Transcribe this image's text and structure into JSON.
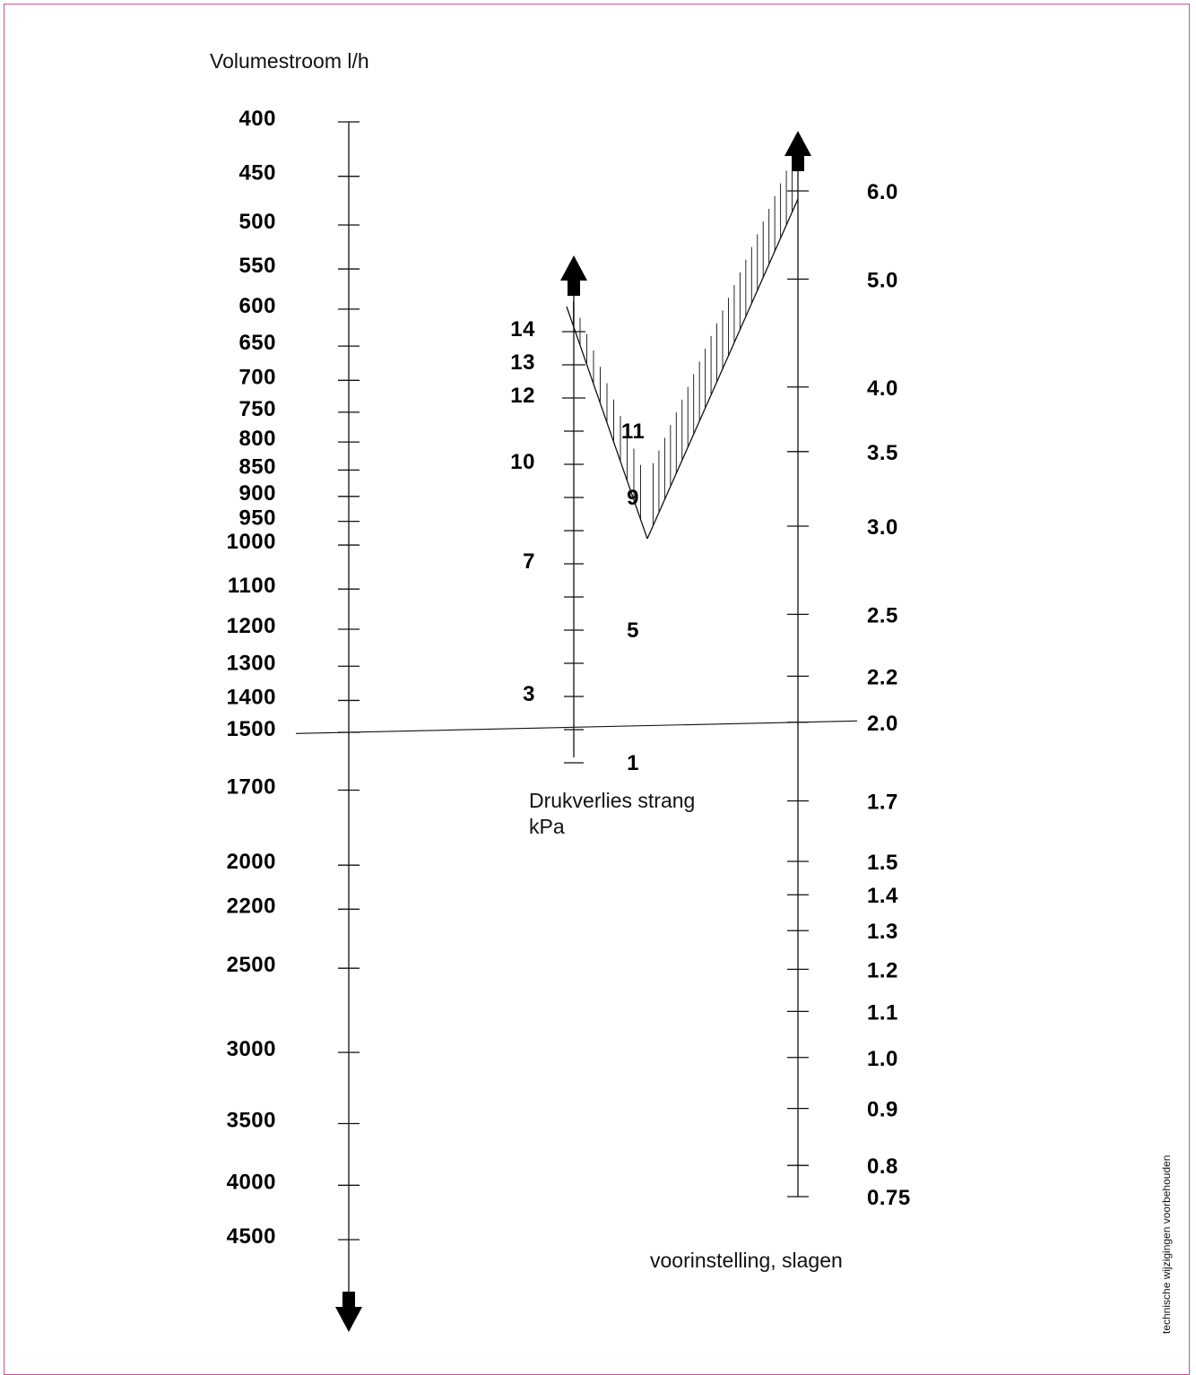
{
  "chart_data": {
    "type": "nomogram",
    "axes": [
      {
        "id": "volumestroom",
        "label": "Volumestroom l/h",
        "ticks": [
          "400",
          "450",
          "500",
          "550",
          "600",
          "650",
          "700",
          "750",
          "800",
          "850",
          "900",
          "950",
          "1000",
          "1100",
          "1200",
          "1300",
          "1400",
          "1500",
          "1700",
          "2000",
          "2200",
          "2500",
          "3000",
          "3500",
          "4000",
          "4500"
        ]
      },
      {
        "id": "drukverlies",
        "label_line1": "Drukverlies strang",
        "label_line2": "kPa",
        "ticks_left": [
          "14",
          "13",
          "12",
          "10",
          "7",
          "3"
        ],
        "ticks_right": [
          "11",
          "9",
          "5",
          "1"
        ]
      },
      {
        "id": "voorinstelling",
        "label": "voorinstelling, slagen",
        "ticks": [
          "6.0",
          "5.0",
          "4.0",
          "3.5",
          "3.0",
          "2.5",
          "2.2",
          "2.0",
          "1.7",
          "1.5",
          "1.4",
          "1.3",
          "1.2",
          "1.1",
          "1.0",
          "0.9",
          "0.8",
          "0.75"
        ]
      }
    ],
    "example_line": {
      "from_volumestroom": "1500",
      "to_voorinstelling": "2.0"
    }
  },
  "side_note": "technische wijzigingen voorbehouden"
}
